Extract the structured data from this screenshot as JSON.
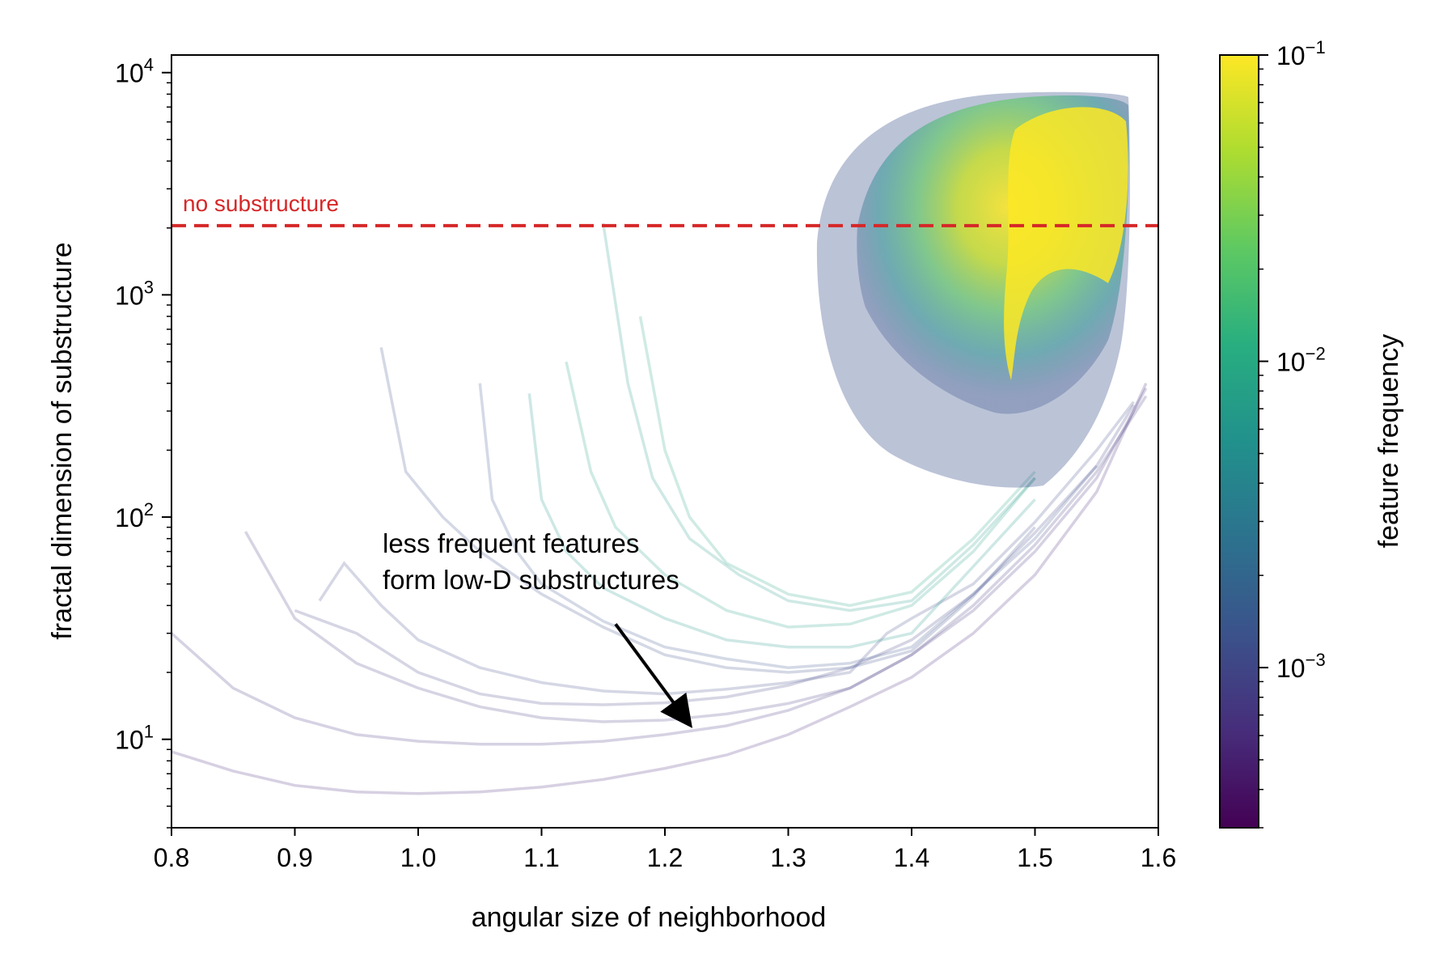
{
  "chart_data": {
    "type": "line",
    "xlabel": "angular size of neighborhood",
    "ylabel": "fractal dimension of substructure",
    "xlim": [
      0.8,
      1.6
    ],
    "ylim": [
      4,
      12000
    ],
    "y_scale": "log",
    "x_ticks": [
      "0.8",
      "0.9",
      "1.0",
      "1.1",
      "1.2",
      "1.3",
      "1.4",
      "1.5",
      "1.6"
    ],
    "y_ticks": [
      {
        "base": "10",
        "exp": "1",
        "value": 10
      },
      {
        "base": "10",
        "exp": "2",
        "value": 100
      },
      {
        "base": "10",
        "exp": "3",
        "value": 1000
      },
      {
        "base": "10",
        "exp": "4",
        "value": 10000
      }
    ],
    "reference_line": {
      "label": "no substructure",
      "y": 2048,
      "color": "#d62728",
      "style": "dashed"
    },
    "annotation": {
      "lines": [
        "less frequent features",
        "form low-D substructures"
      ],
      "arrow_tip": {
        "x": 1.22,
        "y": 11.5
      },
      "arrow_tail": {
        "x": 1.16,
        "y": 33
      }
    },
    "colorbar": {
      "label": "feature frequency",
      "colormap": "viridis",
      "scale": "log",
      "range": [
        0.0003,
        0.1
      ],
      "ticks": [
        {
          "base": "10",
          "exp": "−1",
          "value": 0.1
        },
        {
          "base": "10",
          "exp": "−2",
          "value": 0.01
        },
        {
          "base": "10",
          "exp": "−3",
          "value": 0.001
        }
      ]
    },
    "series": [
      {
        "freq": 0.0006,
        "points": [
          [
            0.8,
            8.8
          ],
          [
            0.85,
            7.2
          ],
          [
            0.9,
            6.2
          ],
          [
            0.95,
            5.8
          ],
          [
            1.0,
            5.7
          ],
          [
            1.05,
            5.8
          ],
          [
            1.1,
            6.1
          ],
          [
            1.15,
            6.6
          ],
          [
            1.2,
            7.4
          ],
          [
            1.25,
            8.5
          ],
          [
            1.3,
            10.5
          ],
          [
            1.35,
            14
          ],
          [
            1.4,
            19
          ],
          [
            1.45,
            30
          ],
          [
            1.5,
            55
          ],
          [
            1.55,
            130
          ],
          [
            1.59,
            400
          ]
        ]
      },
      {
        "freq": 0.0007,
        "points": [
          [
            0.8,
            30
          ],
          [
            0.85,
            17
          ],
          [
            0.9,
            12.5
          ],
          [
            0.95,
            10.5
          ],
          [
            1.0,
            9.8
          ],
          [
            1.05,
            9.5
          ],
          [
            1.1,
            9.5
          ],
          [
            1.15,
            9.8
          ],
          [
            1.2,
            10.5
          ],
          [
            1.25,
            11.5
          ],
          [
            1.3,
            13.5
          ],
          [
            1.35,
            17
          ],
          [
            1.4,
            24
          ],
          [
            1.45,
            38
          ],
          [
            1.5,
            70
          ],
          [
            1.55,
            150
          ],
          [
            1.59,
            380
          ]
        ]
      },
      {
        "freq": 0.0008,
        "points": [
          [
            0.86,
            86
          ],
          [
            0.9,
            35
          ],
          [
            0.95,
            22
          ],
          [
            1.0,
            17
          ],
          [
            1.05,
            14
          ],
          [
            1.1,
            12.5
          ],
          [
            1.15,
            12
          ],
          [
            1.2,
            12.2
          ],
          [
            1.25,
            13
          ],
          [
            1.3,
            14.5
          ],
          [
            1.35,
            17
          ],
          [
            1.4,
            24
          ],
          [
            1.45,
            40
          ],
          [
            1.5,
            75
          ],
          [
            1.55,
            160
          ],
          [
            1.59,
            350
          ]
        ]
      },
      {
        "freq": 0.0009,
        "points": [
          [
            0.9,
            38
          ],
          [
            0.95,
            30
          ],
          [
            1.0,
            20
          ],
          [
            1.05,
            16
          ],
          [
            1.1,
            14.5
          ],
          [
            1.15,
            14.3
          ],
          [
            1.2,
            14.6
          ],
          [
            1.25,
            15.5
          ],
          [
            1.3,
            17.5
          ],
          [
            1.35,
            21
          ],
          [
            1.4,
            28
          ],
          [
            1.45,
            45
          ],
          [
            1.5,
            85
          ],
          [
            1.55,
            170
          ],
          [
            1.58,
            320
          ]
        ]
      },
      {
        "freq": 0.0011,
        "points": [
          [
            0.92,
            42
          ],
          [
            0.94,
            62
          ],
          [
            0.97,
            40
          ],
          [
            1.0,
            28
          ],
          [
            1.05,
            21
          ],
          [
            1.1,
            18
          ],
          [
            1.15,
            16.5
          ],
          [
            1.2,
            16
          ],
          [
            1.25,
            16.8
          ],
          [
            1.3,
            18
          ],
          [
            1.35,
            20
          ],
          [
            1.38,
            30
          ],
          [
            1.4,
            35
          ],
          [
            1.45,
            50
          ],
          [
            1.5,
            95
          ],
          [
            1.55,
            200
          ],
          [
            1.58,
            330
          ]
        ]
      },
      {
        "freq": 0.0013,
        "points": [
          [
            1.05,
            400
          ],
          [
            1.06,
            120
          ],
          [
            1.08,
            70
          ],
          [
            1.1,
            50
          ],
          [
            1.15,
            34
          ],
          [
            1.2,
            26
          ],
          [
            1.25,
            23
          ],
          [
            1.3,
            21
          ],
          [
            1.35,
            22
          ],
          [
            1.4,
            26
          ],
          [
            1.45,
            45
          ],
          [
            1.5,
            80
          ],
          [
            1.55,
            170
          ]
        ]
      },
      {
        "freq": 0.006,
        "points": [
          [
            1.09,
            360
          ],
          [
            1.1,
            120
          ],
          [
            1.12,
            70
          ],
          [
            1.15,
            48
          ],
          [
            1.2,
            35
          ],
          [
            1.25,
            28
          ],
          [
            1.3,
            26
          ],
          [
            1.35,
            26
          ],
          [
            1.4,
            30
          ],
          [
            1.45,
            60
          ],
          [
            1.5,
            120
          ]
        ]
      },
      {
        "freq": 0.008,
        "points": [
          [
            1.12,
            500
          ],
          [
            1.14,
            160
          ],
          [
            1.16,
            90
          ],
          [
            1.2,
            55
          ],
          [
            1.25,
            38
          ],
          [
            1.3,
            32
          ],
          [
            1.35,
            33
          ],
          [
            1.4,
            40
          ],
          [
            1.45,
            70
          ],
          [
            1.5,
            150
          ]
        ]
      },
      {
        "freq": 0.009,
        "points": [
          [
            1.18,
            800
          ],
          [
            1.2,
            200
          ],
          [
            1.22,
            100
          ],
          [
            1.25,
            62
          ],
          [
            1.3,
            45
          ],
          [
            1.35,
            40
          ],
          [
            1.4,
            46
          ],
          [
            1.45,
            80
          ],
          [
            1.5,
            160
          ]
        ]
      },
      {
        "freq": 0.0012,
        "points": [
          [
            0.97,
            580
          ],
          [
            0.99,
            160
          ],
          [
            1.02,
            100
          ],
          [
            1.05,
            70
          ],
          [
            1.1,
            45
          ],
          [
            1.15,
            32
          ],
          [
            1.2,
            24
          ],
          [
            1.25,
            21
          ],
          [
            1.3,
            20
          ],
          [
            1.35,
            21
          ],
          [
            1.4,
            25
          ],
          [
            1.45,
            44
          ],
          [
            1.5,
            90
          ]
        ]
      },
      {
        "freq": 0.007,
        "points": [
          [
            1.15,
            2100
          ],
          [
            1.17,
            400
          ],
          [
            1.19,
            150
          ],
          [
            1.22,
            80
          ],
          [
            1.26,
            55
          ],
          [
            1.3,
            42
          ],
          [
            1.35,
            38
          ],
          [
            1.4,
            42
          ],
          [
            1.45,
            75
          ],
          [
            1.5,
            150
          ]
        ]
      }
    ]
  }
}
